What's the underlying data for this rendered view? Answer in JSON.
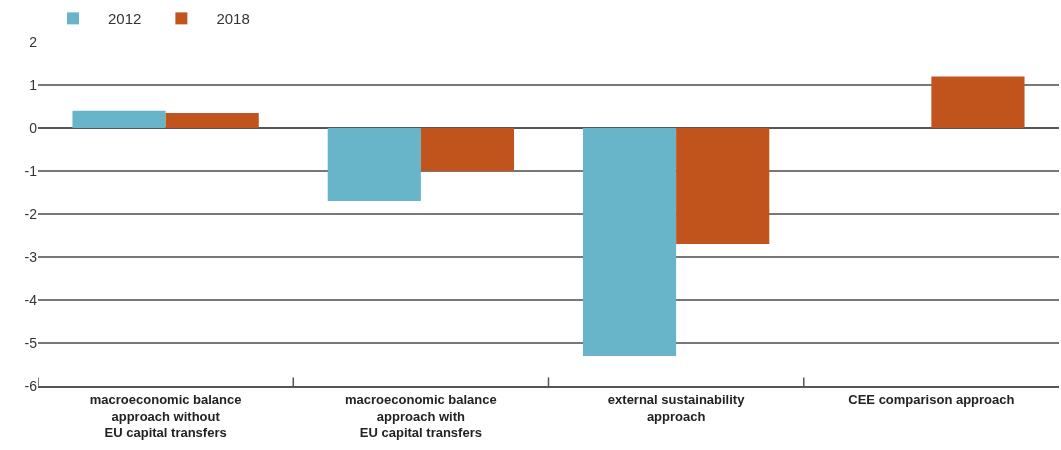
{
  "chart_data": {
    "type": "bar",
    "categories": [
      "macroeconomic balance\napproach without\nEU capital transfers",
      "macroeconomic balance\napproach with\nEU capital transfers",
      "external sustainability\napproach",
      "CEE comparison approach"
    ],
    "series": [
      {
        "name": "2012",
        "color": "#68b4c9",
        "values": [
          0.4,
          -1.7,
          -5.3,
          null
        ]
      },
      {
        "name": "2018",
        "color": "#c1531d",
        "values": [
          0.35,
          -1.0,
          -2.7,
          1.2
        ]
      }
    ],
    "ylim": [
      -6,
      2
    ],
    "yticks": [
      -6,
      -5,
      -4,
      -3,
      -2,
      -1,
      0,
      1,
      2
    ],
    "grid": "y",
    "legend": "top left"
  }
}
